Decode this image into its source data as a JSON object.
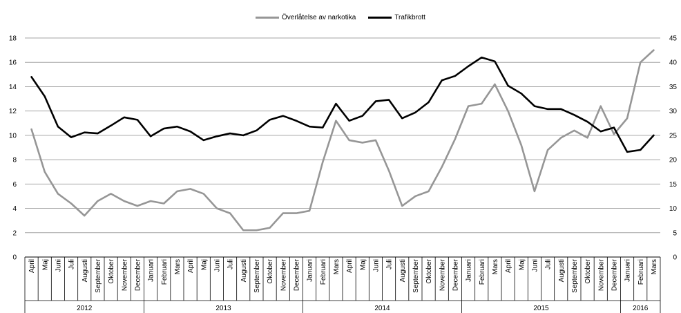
{
  "chart_data": {
    "type": "line",
    "legend_position": "top",
    "grid": true,
    "colors": {
      "series1": "#969696",
      "series2": "#000000"
    },
    "x_months": [
      "April",
      "Maj",
      "Juni",
      "Juli",
      "Augusti",
      "September",
      "Oktober",
      "November",
      "December",
      "Januari",
      "Februari",
      "Mars",
      "April",
      "Maj",
      "Juni",
      "Juli",
      "Augusti",
      "September",
      "Oktober",
      "November",
      "December",
      "Januari",
      "Februari",
      "Mars",
      "April",
      "Maj",
      "Juni",
      "Juli",
      "Augusti",
      "September",
      "Oktober",
      "November",
      "December",
      "Januari",
      "Februari",
      "Mars",
      "April",
      "Maj",
      "Juni",
      "Juli",
      "Augusti",
      "September",
      "Oktober",
      "November",
      "December",
      "Januari",
      "Februari",
      "Mars"
    ],
    "x_years": [
      {
        "label": "2012",
        "start": 0,
        "count": 9
      },
      {
        "label": "2013",
        "start": 9,
        "count": 12
      },
      {
        "label": "2014",
        "start": 21,
        "count": 12
      },
      {
        "label": "2015",
        "start": 33,
        "count": 12
      },
      {
        "label": "2016",
        "start": 45,
        "count": 3
      }
    ],
    "y_left": {
      "min": 0,
      "max": 18,
      "ticks": [
        "0",
        "2",
        "4",
        "6",
        "8",
        "10",
        "12",
        "14",
        "16",
        "18"
      ]
    },
    "y_right": {
      "min": 0,
      "max": 45,
      "ticks": [
        "0",
        "5",
        "10",
        "15",
        "20",
        "25",
        "30",
        "35",
        "40",
        "45"
      ]
    },
    "series": [
      {
        "name": "Överlåtelse av narkotika",
        "axis": "left",
        "values": [
          10.5,
          7,
          5.2,
          4.4,
          3.4,
          4.6,
          5.2,
          4.6,
          4.2,
          4.6,
          4.4,
          5.4,
          5.6,
          5.2,
          4,
          3.6,
          2.2,
          2.2,
          2.4,
          3.6,
          3.6,
          3.8,
          7.8,
          11.2,
          9.6,
          9.4,
          9.6,
          7.1,
          4.2,
          5,
          5.4,
          7.4,
          9.7,
          12.4,
          12.6,
          14.2,
          12,
          9.2,
          5.4,
          8.8,
          9.8,
          10.4,
          9.8,
          12.4,
          10.1,
          11.4,
          16,
          17
        ]
      },
      {
        "name": "Trafikbrott",
        "axis": "right",
        "values": [
          37,
          33,
          26.8,
          24.6,
          25.6,
          25.4,
          27,
          28.7,
          28.2,
          24.8,
          26.4,
          26.8,
          25.8,
          24,
          24.8,
          25.4,
          25,
          26,
          28.2,
          29,
          28,
          26.8,
          26.6,
          31.5,
          28,
          29,
          32,
          32.3,
          28.5,
          29.7,
          31.8,
          36.3,
          37.2,
          39.2,
          41,
          40.2,
          35.2,
          33.6,
          31,
          30.4,
          30.4,
          29.2,
          27.8,
          25.8,
          26.6,
          21.6,
          22,
          25
        ]
      }
    ]
  }
}
